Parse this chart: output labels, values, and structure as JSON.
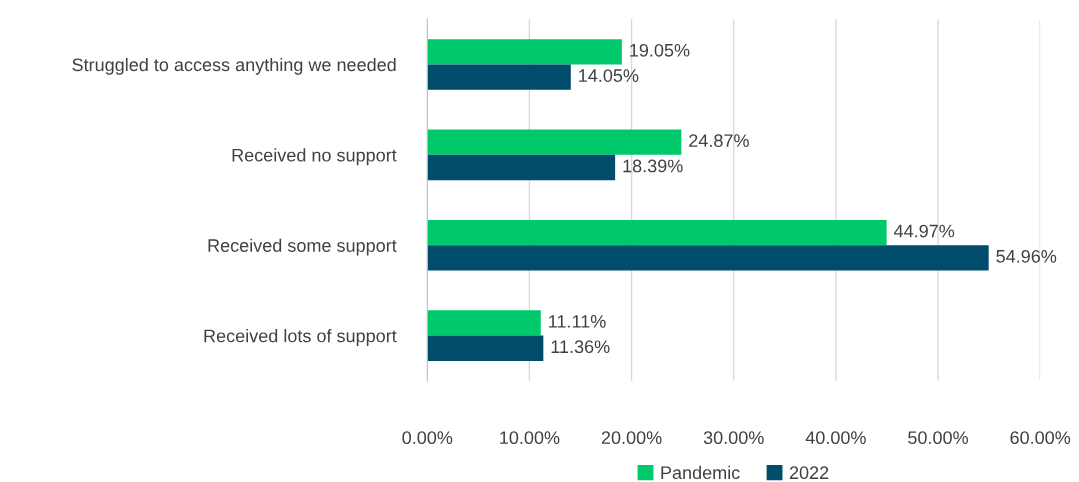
{
  "chart_data": {
    "type": "bar",
    "orientation": "horizontal",
    "categories": [
      "Struggled to access anything we needed",
      "Received no support",
      "Received some support",
      "Received lots of support"
    ],
    "series": [
      {
        "name": "Pandemic",
        "color": "#00c96b",
        "values": [
          19.05,
          24.87,
          44.97,
          11.11
        ],
        "value_labels": [
          "19.05%",
          "24.87%",
          "44.97%",
          "11.11%"
        ]
      },
      {
        "name": "2022",
        "color": "#004d6b",
        "values": [
          14.05,
          18.39,
          54.96,
          11.36
        ],
        "value_labels": [
          "14.05%",
          "18.39%",
          "54.96%",
          "11.36%"
        ]
      }
    ],
    "xlim": [
      0,
      60
    ],
    "xticks": [
      {
        "value": 0,
        "label": "0.00%"
      },
      {
        "value": 10,
        "label": "10.00%"
      },
      {
        "value": 20,
        "label": "20.00%"
      },
      {
        "value": 30,
        "label": "30.00%"
      },
      {
        "value": 40,
        "label": "40.00%"
      },
      {
        "value": 50,
        "label": "50.00%"
      },
      {
        "value": 60,
        "label": "60.00%"
      }
    ],
    "grid": "x",
    "legend": "bottom"
  }
}
